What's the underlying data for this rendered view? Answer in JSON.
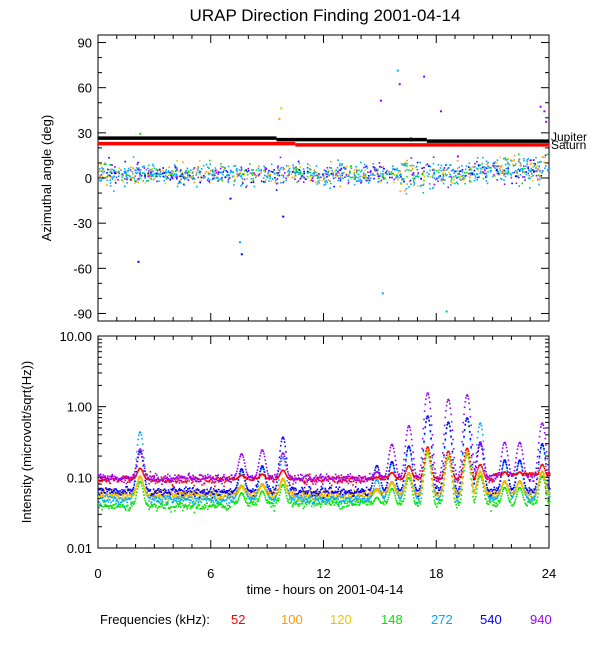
{
  "chart_data": [
    {
      "type": "scatter",
      "title": "URAP Direction Finding  2001-04-14",
      "ylabel": "Azimuthal angle (deg)",
      "ylim": [
        -95,
        95
      ],
      "xlim": [
        0,
        24
      ],
      "yticks": [
        "90",
        "60",
        "30",
        "0",
        "-30",
        "-60",
        "-90"
      ],
      "ytick_values": [
        90,
        60,
        30,
        0,
        -30,
        -60,
        -90
      ],
      "reference_lines": [
        {
          "name": "Jupiter",
          "color": "#000000",
          "segments": [
            [
              0,
              9.5,
              26.5
            ],
            [
              9.5,
              17.5,
              25.5
            ],
            [
              17.5,
              24,
              24.5
            ]
          ]
        },
        {
          "name": "Saturn",
          "color": "#ff0000",
          "segments": [
            [
              0,
              10.5,
              22.8
            ],
            [
              10.5,
              24,
              22.0
            ]
          ]
        }
      ],
      "main_band": {
        "description": "dense scatter of direction-finding points",
        "x_range": [
          0,
          24
        ],
        "center_deg": 3,
        "spread_deg": 8
      },
      "outliers": [
        {
          "x": 2.2,
          "y": 30,
          "freq": "148"
        },
        {
          "x": 2.1,
          "y": -55,
          "freq": "540"
        },
        {
          "x": 7.5,
          "y": -42,
          "freq": "272"
        },
        {
          "x": 7.6,
          "y": -50,
          "freq": "540"
        },
        {
          "x": 9.7,
          "y": 47,
          "freq": "120"
        },
        {
          "x": 9.6,
          "y": 40,
          "freq": "100"
        },
        {
          "x": 9.8,
          "y": -25,
          "freq": "540"
        },
        {
          "x": 15.1,
          "y": -76,
          "freq": "272"
        },
        {
          "x": 15.9,
          "y": 72,
          "freq": "272"
        },
        {
          "x": 16.0,
          "y": 63,
          "freq": "940"
        },
        {
          "x": 17.3,
          "y": 68,
          "freq": "940"
        },
        {
          "x": 18.5,
          "y": -88,
          "freq": "272"
        },
        {
          "x": 15.0,
          "y": 52,
          "freq": "940"
        },
        {
          "x": 18.2,
          "y": 45,
          "freq": "940"
        },
        {
          "x": 23.7,
          "y": 45,
          "freq": "940"
        },
        {
          "x": 23.8,
          "y": 38,
          "freq": "940"
        },
        {
          "x": 23.5,
          "y": 48,
          "freq": "940"
        },
        {
          "x": 16.6,
          "y": 27,
          "freq": "540"
        },
        {
          "x": 19.1,
          "y": 15,
          "freq": "940"
        },
        {
          "x": 7.0,
          "y": -13,
          "freq": "540"
        }
      ]
    },
    {
      "type": "line",
      "ylabel": "Intensity (microvolt/sqrt(Hz))",
      "yscale": "log",
      "ylim": [
        0.01,
        10
      ],
      "yticks": [
        "10.00",
        "1.00",
        "0.10",
        "0.01"
      ],
      "ytick_values": [
        10,
        1,
        0.1,
        0.01
      ],
      "xlabel": "time - hours on 2001-04-14",
      "xticks": [
        "0",
        "6",
        "12",
        "18",
        "24"
      ],
      "xtick_values": [
        0,
        6,
        12,
        18,
        24
      ],
      "series": [
        {
          "name": "52",
          "color": "#ff0000",
          "base": 0.095
        },
        {
          "name": "100",
          "color": "#ff9900",
          "base": 0.06
        },
        {
          "name": "120",
          "color": "#e6c800",
          "base": 0.055
        },
        {
          "name": "148",
          "color": "#00e600",
          "base": 0.04
        },
        {
          "name": "272",
          "color": "#00aaff",
          "base": 0.05
        },
        {
          "name": "540",
          "color": "#0000ff",
          "base": 0.065
        },
        {
          "name": "940",
          "color": "#9900ff",
          "base": 0.1
        }
      ],
      "bursts": [
        {
          "x": 2.2,
          "peak": 0.45,
          "freq": "272"
        },
        {
          "x": 7.6,
          "peak": 0.22,
          "freq": "940"
        },
        {
          "x": 8.7,
          "peak": 0.25,
          "freq": "940"
        },
        {
          "x": 9.8,
          "peak": 0.38,
          "freq": "540"
        },
        {
          "x": 14.8,
          "peak": 0.15,
          "freq": "540"
        },
        {
          "x": 15.6,
          "peak": 0.3,
          "freq": "940"
        },
        {
          "x": 16.5,
          "peak": 0.55,
          "freq": "940"
        },
        {
          "x": 17.5,
          "peak": 1.6,
          "freq": "940"
        },
        {
          "x": 18.6,
          "peak": 1.3,
          "freq": "940"
        },
        {
          "x": 19.6,
          "peak": 1.5,
          "freq": "940"
        },
        {
          "x": 20.3,
          "peak": 0.6,
          "freq": "272"
        },
        {
          "x": 21.6,
          "peak": 0.32,
          "freq": "940"
        },
        {
          "x": 22.4,
          "peak": 0.32,
          "freq": "940"
        },
        {
          "x": 23.6,
          "peak": 0.6,
          "freq": "940"
        }
      ]
    }
  ],
  "labels": {
    "jupiter": "Jupiter",
    "saturn": "Saturn",
    "freq_title": "Frequencies (kHz):",
    "freqs": [
      "52",
      "100",
      "120",
      "148",
      "272",
      "540",
      "940"
    ]
  }
}
